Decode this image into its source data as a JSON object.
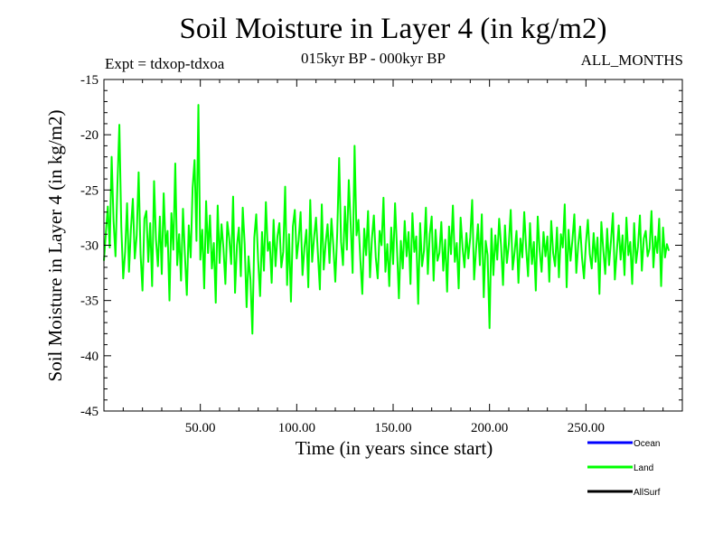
{
  "chart_data": {
    "type": "line",
    "title": "Soil Moisture in Layer 4 (in kg/m2)",
    "subtitle_left": "Expt = tdxop-tdxoa",
    "subtitle_center": "015kyr BP - 000kyr BP",
    "subtitle_right": "ALL_MONTHS",
    "xlabel": "Time (in years since start)",
    "ylabel": "Soil Moisture in Layer 4 (in kg/m2)",
    "xlim": [
      0,
      300
    ],
    "ylim": [
      -45,
      -15
    ],
    "x_ticks": [
      50,
      100,
      150,
      200,
      250
    ],
    "x_tick_labels": [
      "50.00",
      "100.00",
      "150.00",
      "200.00",
      "250.00"
    ],
    "y_ticks": [
      -45,
      -40,
      -35,
      -30,
      -25,
      -20,
      -15
    ],
    "y_tick_labels": [
      "-45",
      "-40",
      "-35",
      "-30",
      "-25",
      "-20",
      "-15"
    ],
    "grid": false,
    "legend_position": "bottom-right",
    "legend": [
      {
        "name": "Ocean",
        "color": "#0000ff"
      },
      {
        "name": "Land",
        "color": "#00ff00"
      },
      {
        "name": "AllSurf",
        "color": "#000000"
      }
    ],
    "series": [
      {
        "name": "Land",
        "color": "#00ff00",
        "x_start": 0,
        "x_step": 1,
        "values": [
          -31.4,
          -28.9,
          -26.5,
          -30.2,
          -22.0,
          -27.8,
          -31.0,
          -24.5,
          -19.1,
          -28.3,
          -33.0,
          -30.6,
          -26.2,
          -32.4,
          -28.5,
          -25.8,
          -31.2,
          -29.1,
          -23.4,
          -30.8,
          -34.1,
          -27.6,
          -26.9,
          -31.5,
          -28.0,
          -33.7,
          -24.2,
          -29.5,
          -31.9,
          -27.4,
          -32.6,
          -25.3,
          -30.1,
          -28.7,
          -35.0,
          -27.1,
          -30.4,
          -22.6,
          -31.8,
          -29.0,
          -33.2,
          -26.7,
          -30.9,
          -34.5,
          -28.2,
          -31.1,
          -24.8,
          -22.3,
          -29.6,
          -17.3,
          -31.3,
          -28.6,
          -33.9,
          -26.0,
          -30.7,
          -27.3,
          -32.1,
          -29.8,
          -35.2,
          -26.4,
          -31.6,
          -28.1,
          -30.3,
          -33.5,
          -27.9,
          -29.4,
          -31.7,
          -25.6,
          -34.3,
          -30.0,
          -28.4,
          -32.8,
          -26.6,
          -29.9,
          -35.6,
          -31.0,
          -33.1,
          -38.0,
          -29.3,
          -27.2,
          -31.4,
          -34.6,
          -28.8,
          -32.3,
          -26.1,
          -30.5,
          -29.7,
          -33.4,
          -27.7,
          -31.9,
          -29.2,
          -28.0,
          -32.0,
          -30.6,
          -24.7,
          -33.6,
          -29.0,
          -35.1,
          -28.3,
          -26.8,
          -31.2,
          -29.5,
          -27.0,
          -32.7,
          -30.2,
          -28.6,
          -33.8,
          -25.9,
          -31.5,
          -29.3,
          -27.5,
          -30.8,
          -34.0,
          -26.3,
          -32.2,
          -29.8,
          -28.1,
          -31.6,
          -27.6,
          -30.1,
          -33.3,
          -28.9,
          -22.1,
          -29.7,
          -31.8,
          -26.5,
          -30.4,
          -24.1,
          -28.2,
          -32.5,
          -21.0,
          -29.1,
          -27.7,
          -31.3,
          -34.4,
          -28.5,
          -30.9,
          -26.9,
          -32.9,
          -29.4,
          -27.3,
          -31.1,
          -33.0,
          -28.7,
          -30.0,
          -25.7,
          -32.4,
          -29.9,
          -33.7,
          -28.4,
          -31.7,
          -26.2,
          -30.3,
          -34.8,
          -29.6,
          -32.1,
          -27.8,
          -31.0,
          -28.8,
          -33.5,
          -27.1,
          -30.6,
          -29.2,
          -35.3,
          -28.0,
          -31.9,
          -30.5,
          -26.6,
          -32.6,
          -29.0,
          -27.4,
          -33.2,
          -28.6,
          -31.4,
          -30.7,
          -27.9,
          -32.3,
          -29.5,
          -34.2,
          -28.3,
          -30.8,
          -26.4,
          -31.5,
          -29.8,
          -33.9,
          -27.5,
          -30.2,
          -32.0,
          -28.9,
          -31.2,
          -29.3,
          -25.9,
          -33.1,
          -30.4,
          -28.1,
          -31.8,
          -27.2,
          -34.7,
          -29.6,
          -30.9,
          -37.5,
          -28.5,
          -32.7,
          -29.1,
          -31.3,
          -27.6,
          -30.1,
          -33.6,
          -28.2,
          -31.6,
          -29.9,
          -26.8,
          -32.2,
          -30.6,
          -28.7,
          -33.4,
          -29.4,
          -31.1,
          -27.0,
          -30.3,
          -32.8,
          -28.0,
          -31.7,
          -29.7,
          -34.1,
          -27.4,
          -30.5,
          -32.4,
          -28.8,
          -31.0,
          -29.2,
          -33.3,
          -27.8,
          -30.7,
          -31.9,
          -28.4,
          -32.9,
          -29.0,
          -30.2,
          -26.3,
          -33.8,
          -28.6,
          -31.4,
          -29.5,
          -27.2,
          -32.5,
          -30.0,
          -28.3,
          -31.2,
          -33.0,
          -29.8,
          -27.7,
          -30.8,
          -32.1,
          -28.9,
          -31.5,
          -29.3,
          -34.4,
          -27.9,
          -30.4,
          -32.6,
          -28.5,
          -31.8,
          -29.6,
          -27.1,
          -33.1,
          -30.6,
          -28.2,
          -31.3,
          -29.1,
          -32.7,
          -27.5,
          -30.9,
          -29.7,
          -33.5,
          -28.0,
          -31.6,
          -30.1,
          -27.3,
          -32.3,
          -29.4,
          -28.7,
          -31.0,
          -30.3,
          -26.9,
          -32.0,
          -29.2,
          -30.7,
          -27.6,
          -33.7,
          -28.4,
          -31.1,
          -29.9,
          -30.5
        ]
      }
    ]
  }
}
